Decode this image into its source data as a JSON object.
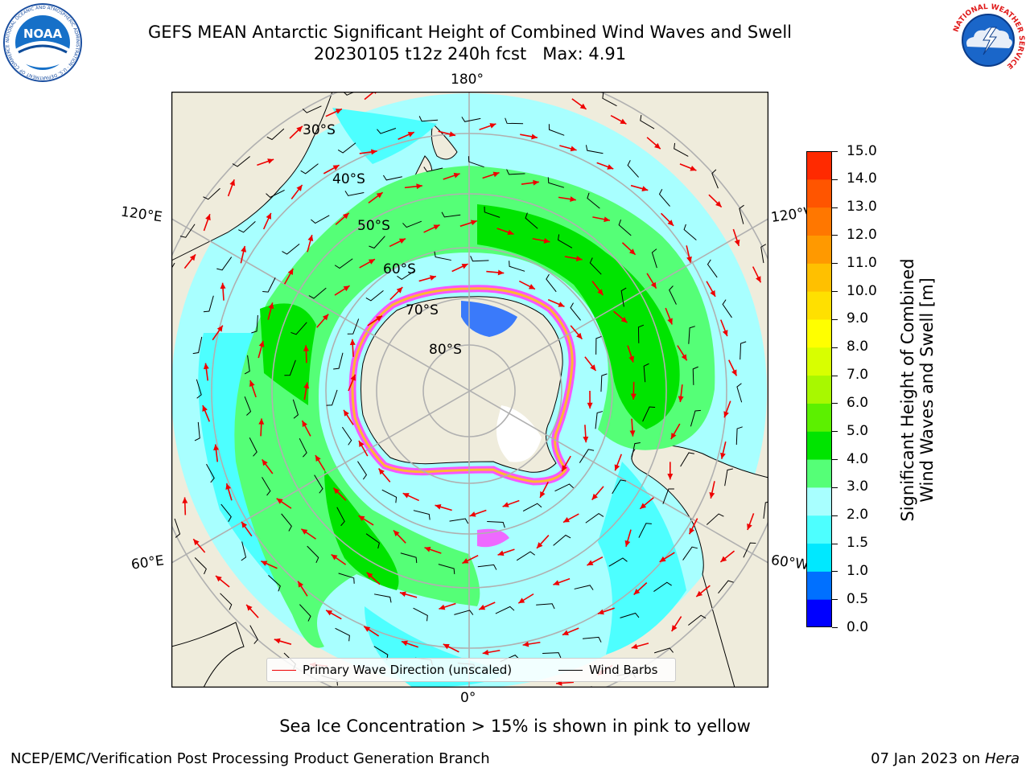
{
  "title_line1": "GEFS MEAN Antarctic Significant Height of Combined Wind Waves and Swell",
  "title_line2": "20230105 t12z 240h fcst   Max: 4.91",
  "logos": {
    "noaa_text": "NOAA",
    "noaa_ring_text": "NATIONAL OCEANIC AND ATMOSPHERIC ADMINISTRATION · U.S. DEPARTMENT OF COMMERCE",
    "nws_ring_text": "NATIONAL WEATHER SERVICE"
  },
  "map": {
    "projection": "south polar stereographic",
    "longitude_labels": {
      "top": "180°",
      "bottom": "0°",
      "upper_left": "120°E",
      "upper_right": "120°W",
      "lower_left": "60°E",
      "lower_right": "60°W"
    },
    "latitude_labels": [
      "30°S",
      "40°S",
      "50°S",
      "60°S",
      "70°S",
      "80°S"
    ],
    "colors": {
      "land": "#efecdc",
      "ocean_low": "#a8ffff",
      "ocean_cyan": "#4dffff",
      "band_light_green": "#55ff77",
      "band_green": "#00e400",
      "ice_pink": "#ff44ff",
      "ice_yellow": "#ffd000",
      "grid": "#b0b0b0",
      "arrow": "#ee0000",
      "barb": "#000000"
    }
  },
  "colorbar": {
    "label_line1": "Significant Height of Combined",
    "label_line2": "Wind Waves and Swell [m]",
    "ticks": [
      "0.0",
      "0.5",
      "1.0",
      "1.5",
      "2.0",
      "3.0",
      "4.0",
      "5.0",
      "6.0",
      "7.0",
      "8.0",
      "9.0",
      "10.0",
      "11.0",
      "12.0",
      "13.0",
      "14.0",
      "15.0"
    ],
    "colors": [
      "#0000ff",
      "#0070ff",
      "#00e8ff",
      "#4dffff",
      "#a8ffff",
      "#55ff77",
      "#00e400",
      "#5cf000",
      "#a8f800",
      "#d8ff00",
      "#ffff00",
      "#ffe000",
      "#ffc000",
      "#ff9900",
      "#ff7700",
      "#ff5500",
      "#ff2a00"
    ]
  },
  "legend": {
    "wave": "Primary Wave Direction (unscaled)",
    "wind": "Wind Barbs"
  },
  "footnote": "Sea Ice Concentration > 15% is shown in pink to yellow",
  "credit": "NCEP/EMC/Verification Post Processing Product Generation Branch",
  "date_text": "07 Jan 2023 on ",
  "date_host": "Hera"
}
